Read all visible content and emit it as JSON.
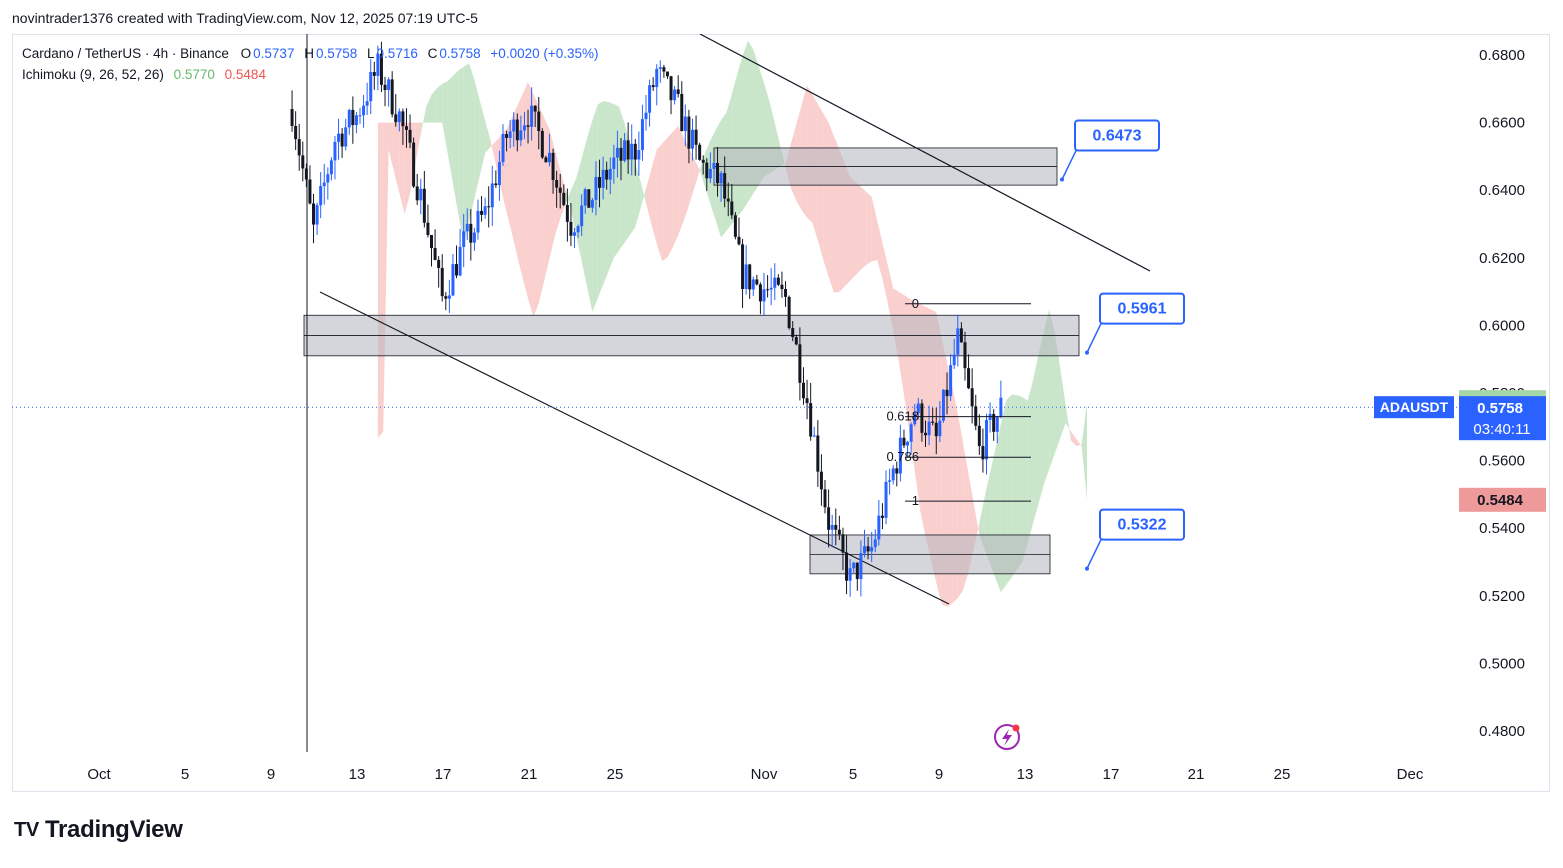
{
  "header": {
    "byline": "novintrader1376 created with TradingView.com, Nov 12, 2025 07:19 UTC-5"
  },
  "legend": {
    "symbol": "Cardano / TetherUS · 4h · Binance",
    "ohlc": {
      "o_label": "O",
      "o": "0.5737",
      "h_label": "H",
      "h": "0.5758",
      "l_label": "L",
      "l": "0.5716",
      "c_label": "C",
      "c": "0.5758",
      "change": "+0.0020 (+0.35%)"
    },
    "indicator": "Ichimoku (9, 26, 52, 26)",
    "ind_value_1": "0.5770",
    "ind_value_2": "0.5484"
  },
  "price_labels": {
    "symbol_tag": "ADAUSDT",
    "last_price": "0.5758",
    "countdown": "03:40:11",
    "span_a": "0.5770",
    "span_b": "0.5484"
  },
  "callouts": [
    "0.6473",
    "0.5961",
    "0.5322"
  ],
  "fib_labels": [
    "0",
    "0.618",
    "0.786",
    "1"
  ],
  "brand": {
    "name": "TradingView",
    "mark": "TV"
  },
  "colors": {
    "up": "#2962ff",
    "down": "#131722",
    "span_green": "#a5d6a7",
    "span_red": "#f7b1ad",
    "zone": "#b2b5be",
    "callout": "#2962ff",
    "last_price_bg": "#2962ff",
    "span_a_bg": "#a5d6a7",
    "span_b_bg": "#ef9a9a"
  },
  "chart_data": {
    "type": "candlestick",
    "title": "Cardano / TetherUS · 4h · Binance",
    "xlabel": "",
    "ylabel": "",
    "x_ticks": [
      "Oct",
      "5",
      "9",
      "13",
      "17",
      "21",
      "25",
      "Nov",
      "5",
      "9",
      "13",
      "17",
      "21",
      "25",
      "Dec"
    ],
    "y_ticks": [
      0.68,
      0.66,
      0.64,
      0.62,
      0.6,
      0.58,
      0.56,
      0.54,
      0.52,
      0.5,
      0.48
    ],
    "ylim": [
      0.475,
      0.687
    ],
    "grid": false,
    "last_close": 0.5758,
    "resistance_zones": [
      {
        "low": 0.6415,
        "high": 0.6525
      },
      {
        "low": 0.591,
        "high": 0.603
      },
      {
        "low": 0.5265,
        "high": 0.538
      }
    ],
    "targets": [
      0.6473,
      0.5961,
      0.5322
    ],
    "fib_levels": [
      {
        "label": "0",
        "price": 0.6064
      },
      {
        "label": "0.618",
        "price": 0.573
      },
      {
        "label": "0.786",
        "price": 0.561
      },
      {
        "label": "1",
        "price": 0.548
      }
    ],
    "ichimoku": {
      "conversion": 9,
      "base": 26,
      "span_b": 52,
      "displacement": 26,
      "span_a_last": 0.577,
      "span_b_last": 0.5484
    },
    "price_path": [
      [
        "Oct 10",
        0.664
      ],
      [
        "Oct 11",
        0.628
      ],
      [
        "Oct 12",
        0.655
      ],
      [
        "Oct 13",
        0.662
      ],
      [
        "Oct 14",
        0.676
      ],
      [
        "Oct 15",
        0.662
      ],
      [
        "Oct 16",
        0.638
      ],
      [
        "Oct 17",
        0.608
      ],
      [
        "Oct 18",
        0.624
      ],
      [
        "Oct 19",
        0.633
      ],
      [
        "Oct 20",
        0.656
      ],
      [
        "Oct 21",
        0.663
      ],
      [
        "Oct 22",
        0.65
      ],
      [
        "Oct 23",
        0.63
      ],
      [
        "Oct 24",
        0.638
      ],
      [
        "Oct 25",
        0.648
      ],
      [
        "Oct 26",
        0.652
      ],
      [
        "Oct 27",
        0.675
      ],
      [
        "Oct 28",
        0.664
      ],
      [
        "Oct 29",
        0.648
      ],
      [
        "Oct 30",
        0.642
      ],
      [
        "Oct 31",
        0.615
      ],
      [
        "Nov 1",
        0.611
      ],
      [
        "Nov 2",
        0.608
      ],
      [
        "Nov 3",
        0.578
      ],
      [
        "Nov 4",
        0.542
      ],
      [
        "Nov 5",
        0.525
      ],
      [
        "Nov 6",
        0.534
      ],
      [
        "Nov 7",
        0.557
      ],
      [
        "Nov 8",
        0.575
      ],
      [
        "Nov 9",
        0.566
      ],
      [
        "Nov 10",
        0.596
      ],
      [
        "Nov 11",
        0.563
      ],
      [
        "Nov 12",
        0.5758
      ]
    ]
  }
}
